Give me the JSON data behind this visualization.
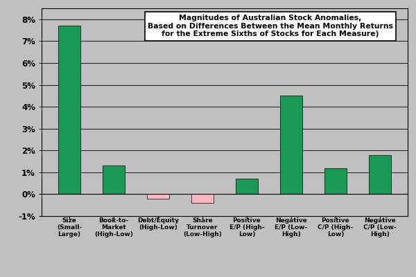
{
  "categories_line1": [
    "Size",
    "Book-to-",
    "Debt/Equity",
    "Share",
    "Positive",
    "Negative",
    "Positive",
    "Negative"
  ],
  "categories_line2": [
    "(Small-",
    "Market",
    "(High-Low)",
    "Turnover",
    "E/P (High-",
    "E/P (Low-",
    "C/P (High-",
    "C/P (Low-"
  ],
  "categories_line3": [
    "Large)",
    "(High-Low)",
    "",
    "(Low-High)",
    "Low)",
    "High)",
    "Low)",
    "High)"
  ],
  "values": [
    0.077,
    0.013,
    -0.002,
    -0.004,
    0.007,
    0.045,
    0.012,
    0.018
  ],
  "bar_colors": [
    "#1a9955",
    "#1a9955",
    "#FFB6C1",
    "#FFB6C1",
    "#1a9955",
    "#1a9955",
    "#1a9955",
    "#1a9955"
  ],
  "title_line1": "Magnitudes of Australian Stock Anomalies,",
  "title_line2": "Based on Differences Between the Mean Monthly Returns",
  "title_line3": "for the Extreme Sixths of Stocks for Each Measure)",
  "ylim": [
    -0.01,
    0.085
  ],
  "yticks": [
    -0.01,
    0.0,
    0.01,
    0.02,
    0.03,
    0.04,
    0.05,
    0.06,
    0.07,
    0.08
  ],
  "ytick_labels": [
    "-1%",
    "0%",
    "1%",
    "2%",
    "3%",
    "4%",
    "5%",
    "6%",
    "7%",
    "8%"
  ],
  "background_color": "#C0C0C0",
  "plot_bg_color": "#C0C0C0",
  "bar_width": 0.5
}
